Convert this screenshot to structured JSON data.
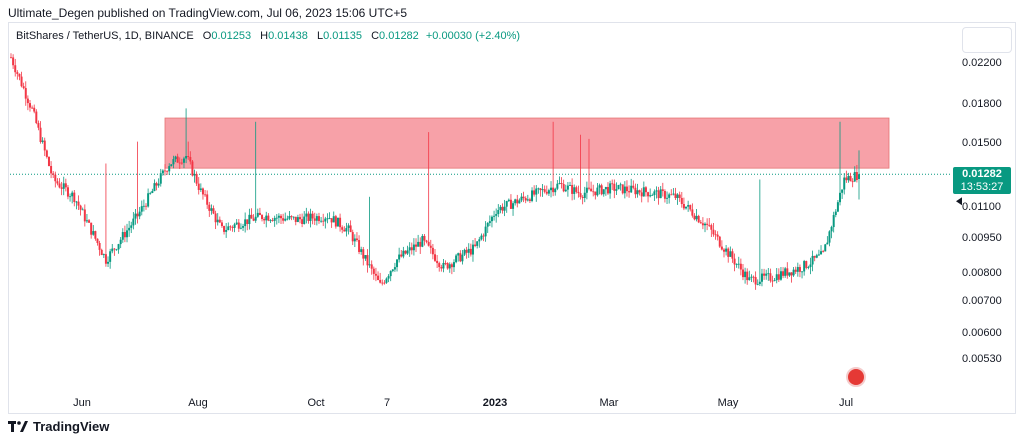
{
  "header": {
    "caption": "Ultimate_Degen published on TradingView.com, Jul 06, 2023 15:06 UTC+5"
  },
  "legend": {
    "symbol": "BitShares / TetherUS, 1D, BINANCE",
    "open_key": "O",
    "open": "0.01253",
    "high_key": "H",
    "high": "0.01438",
    "low_key": "L",
    "low": "0.01135",
    "close_key": "C",
    "close": "0.01282",
    "change": "+0.00030 (+2.40%)"
  },
  "price_badge": {
    "price": "0.01282",
    "countdown": "13:53:27",
    "color": "#089981"
  },
  "footer": {
    "brand": "TradingView",
    "logo_icon": "tradingview-logo-icon"
  },
  "colors": {
    "up": "#089981",
    "down": "#f23645",
    "zone": "#f7a1a8"
  },
  "chart_data": {
    "type": "candlestick",
    "y_scale": "log",
    "ylim": [
      0.0046,
      0.03
    ],
    "y_ticks": [
      "0.02200",
      "0.01800",
      "0.01500",
      "0.01100",
      "0.00950",
      "0.00800",
      "0.00700",
      "0.00600",
      "0.00530"
    ],
    "x_ticks": [
      "Jun",
      "Aug",
      "Oct",
      "7",
      "2023",
      "Mar",
      "May",
      "Jul"
    ],
    "resistance_zone": {
      "low": 0.0132,
      "high": 0.0168
    },
    "last_close": 0.01282,
    "path_days": [
      0,
      10,
      20,
      30,
      45,
      60,
      75,
      83,
      90,
      100,
      110,
      120,
      135,
      150,
      160,
      175,
      183,
      195,
      205,
      220,
      230,
      245,
      260,
      270,
      285,
      300,
      315,
      330,
      350,
      360,
      375,
      385,
      395,
      402
    ],
    "path_close": [
      0.0225,
      0.0175,
      0.0125,
      0.0115,
      0.0085,
      0.0105,
      0.0135,
      0.014,
      0.0118,
      0.0098,
      0.0102,
      0.0105,
      0.0103,
      0.0105,
      0.0098,
      0.0075,
      0.0085,
      0.0093,
      0.0082,
      0.009,
      0.0108,
      0.0115,
      0.0122,
      0.0117,
      0.012,
      0.0118,
      0.0115,
      0.01,
      0.0077,
      0.0078,
      0.0082,
      0.0087,
      0.0125,
      0.01282
    ],
    "spike_days": [
      45,
      60,
      83,
      84,
      116,
      170,
      198,
      257,
      270,
      274,
      355,
      393
    ],
    "spike_highs": [
      0.0135,
      0.015,
      0.0176,
      0.015,
      0.0165,
      0.0115,
      0.0157,
      0.0165,
      0.0155,
      0.0152,
      0.0125,
      0.0165
    ]
  }
}
